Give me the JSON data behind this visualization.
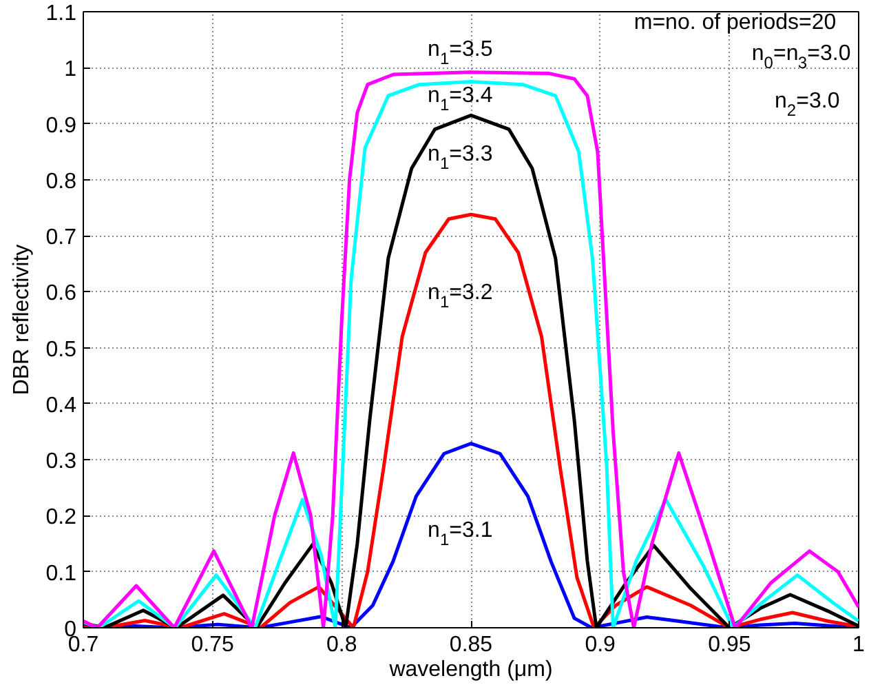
{
  "chart_data": {
    "type": "line",
    "xlabel": "wavelength (μm)",
    "ylabel": "DBR reflectivity",
    "xlim": [
      0.7,
      1.0
    ],
    "ylim": [
      0,
      1.1
    ],
    "xticks": [
      0.7,
      0.75,
      0.8,
      0.85,
      0.9,
      0.95,
      1
    ],
    "yticks": [
      0,
      0.1,
      0.2,
      0.3,
      0.4,
      0.5,
      0.6,
      0.7,
      0.8,
      0.9,
      1,
      1.1
    ],
    "grid": true,
    "marker": "none",
    "line_style": "solid",
    "annotations": [
      "m=no. of periods=20",
      "n$_{0}$=n$_{3}$=3.0",
      "n$_{2}$=3.0"
    ],
    "series": [
      {
        "name": "n$_{1}$=3.1",
        "color": "#0000ff",
        "x": [
          0.7,
          0.71,
          0.72,
          0.735,
          0.752,
          0.768,
          0.78,
          0.792,
          0.8035,
          0.812,
          0.8198,
          0.8288,
          0.8396,
          0.85,
          0.8612,
          0.872,
          0.881,
          0.89,
          0.8967,
          0.908,
          0.918,
          0.93,
          0.9494,
          0.962,
          0.9754,
          0.99,
          1.0
        ],
        "values": [
          0.002,
          0,
          0.003,
          0,
          0.006,
          0,
          0.01,
          0.02,
          0,
          0.04,
          0.118,
          0.235,
          0.311,
          0.329,
          0.311,
          0.235,
          0.118,
          0.017,
          0,
          0.01,
          0.019,
          0.012,
          0,
          0.005,
          0.008,
          0.003,
          0
        ]
      },
      {
        "name": "n$_{1}$=3.2",
        "color": "#ff0000",
        "x": [
          0.7,
          0.708,
          0.7238,
          0.7375,
          0.7545,
          0.7685,
          0.78,
          0.7911,
          0.8045,
          0.81,
          0.8162,
          0.8234,
          0.8324,
          0.8414,
          0.85,
          0.8594,
          0.8683,
          0.8773,
          0.8845,
          0.891,
          0.8976,
          0.906,
          0.918,
          0.935,
          0.95,
          0.962,
          0.9744,
          0.988,
          1.0
        ],
        "values": [
          0.005,
          0,
          0.013,
          0,
          0.025,
          0,
          0.045,
          0.073,
          0,
          0.1,
          0.286,
          0.52,
          0.67,
          0.73,
          0.738,
          0.73,
          0.67,
          0.52,
          0.286,
          0.09,
          0,
          0.04,
          0.073,
          0.04,
          0,
          0.015,
          0.027,
          0.012,
          0.002
        ]
      },
      {
        "name": "n$_{1}$=3.3",
        "color": "#000000",
        "x": [
          0.7,
          0.708,
          0.7232,
          0.736,
          0.7541,
          0.767,
          0.778,
          0.7888,
          0.796,
          0.8015,
          0.806,
          0.8108,
          0.818,
          0.827,
          0.836,
          0.85,
          0.8647,
          0.8737,
          0.8827,
          0.89,
          0.895,
          0.8985,
          0.91,
          0.9207,
          0.935,
          0.95,
          0.962,
          0.9735,
          0.988,
          1.0
        ],
        "values": [
          0.008,
          0,
          0.031,
          0,
          0.058,
          0,
          0.08,
          0.149,
          0.08,
          0,
          0.15,
          0.37,
          0.66,
          0.82,
          0.89,
          0.915,
          0.89,
          0.82,
          0.66,
          0.37,
          0.12,
          0,
          0.08,
          0.147,
          0.07,
          0,
          0.035,
          0.059,
          0.03,
          0.003
        ]
      },
      {
        "name": "n$_{1}$=3.4",
        "color": "#00ffff",
        "x": [
          0.7,
          0.706,
          0.7214,
          0.7355,
          0.7514,
          0.7665,
          0.776,
          0.7848,
          0.792,
          0.7975,
          0.8005,
          0.8036,
          0.809,
          0.818,
          0.83,
          0.85,
          0.87,
          0.8827,
          0.8917,
          0.897,
          0.9025,
          0.905,
          0.914,
          0.9254,
          0.94,
          0.9513,
          0.964,
          0.9763,
          0.99,
          1.0
        ],
        "values": [
          0.01,
          0,
          0.048,
          0,
          0.094,
          0,
          0.12,
          0.229,
          0.13,
          0,
          0.3,
          0.62,
          0.857,
          0.95,
          0.97,
          0.975,
          0.97,
          0.95,
          0.85,
          0.66,
          0.29,
          0,
          0.12,
          0.229,
          0.11,
          0,
          0.05,
          0.094,
          0.045,
          0.012
        ]
      },
      {
        "name": "n$_{1}$=3.5",
        "color": "#ff00ff",
        "x": [
          0.7,
          0.7054,
          0.7205,
          0.7352,
          0.7505,
          0.7652,
          0.774,
          0.7813,
          0.788,
          0.7929,
          0.7965,
          0.8,
          0.803,
          0.806,
          0.81,
          0.82,
          0.85,
          0.88,
          0.89,
          0.895,
          0.899,
          0.902,
          0.905,
          0.909,
          0.913,
          0.92,
          0.9304,
          0.942,
          0.9522,
          0.966,
          0.981,
          0.992,
          1.0
        ],
        "values": [
          0.012,
          0,
          0.075,
          0,
          0.137,
          0,
          0.2,
          0.312,
          0.2,
          0,
          0.2,
          0.55,
          0.8,
          0.92,
          0.97,
          0.988,
          0.992,
          0.99,
          0.98,
          0.95,
          0.85,
          0.6,
          0.35,
          0.1,
          0,
          0.15,
          0.312,
          0.15,
          0,
          0.08,
          0.137,
          0.1,
          0.037
        ]
      }
    ]
  }
}
